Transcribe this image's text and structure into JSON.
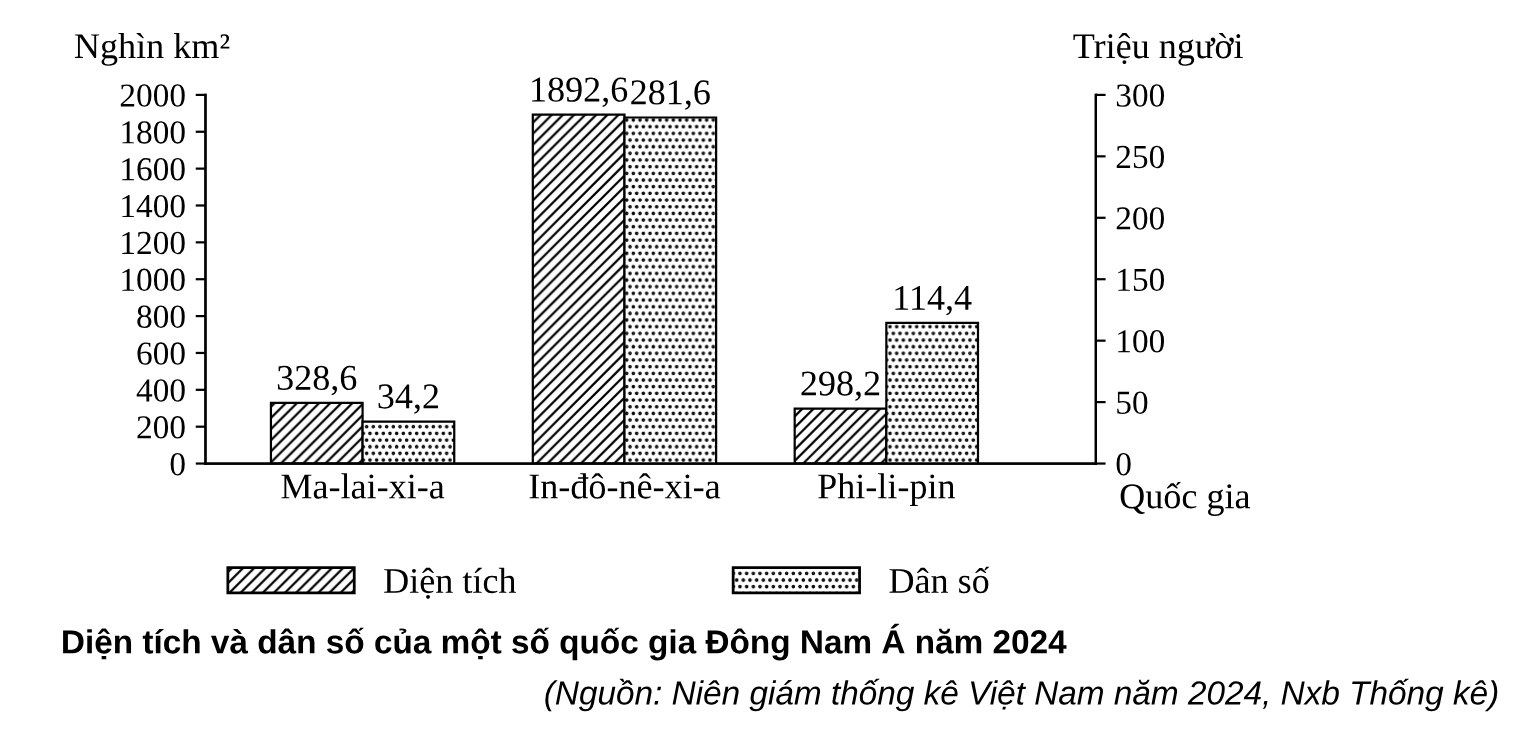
{
  "chart_data": {
    "type": "bar",
    "title": "Diện tích và dân số của một số quốc gia Đông Nam Á năm 2024",
    "xlabel": "Quốc gia",
    "ylabel": "Nghìn km²",
    "y2label": "Triệu người",
    "categories": [
      "Ma-lai-xi-a",
      "In-đô-nê-xi-a",
      "Phi-li-pin"
    ],
    "series": [
      {
        "name": "Diện tích",
        "color": "#000000",
        "values": [
          328.6,
          1892.6,
          298.2
        ],
        "value_labels": [
          "328,6",
          "1892,6",
          "298,2"
        ]
      },
      {
        "name": "Dân số",
        "color": "#000000",
        "axis": "y2",
        "values": [
          34.2,
          281.6,
          114.4
        ],
        "value_labels": [
          "34,2",
          "281,6",
          "114,4"
        ]
      }
    ],
    "ylim": [
      0,
      2000
    ],
    "yticks": [
      0,
      200,
      400,
      600,
      800,
      1000,
      1200,
      1400,
      1600,
      1800,
      2000
    ],
    "y2lim": [
      0,
      300
    ],
    "y2ticks": [
      0,
      50,
      100,
      150,
      200,
      250,
      300
    ],
    "legend": "bottom",
    "grid": false,
    "annotations": [
      "(Nguồn: Niên giám thống kê Việt Nam năm 2024, Nxb Thống kê)"
    ]
  }
}
